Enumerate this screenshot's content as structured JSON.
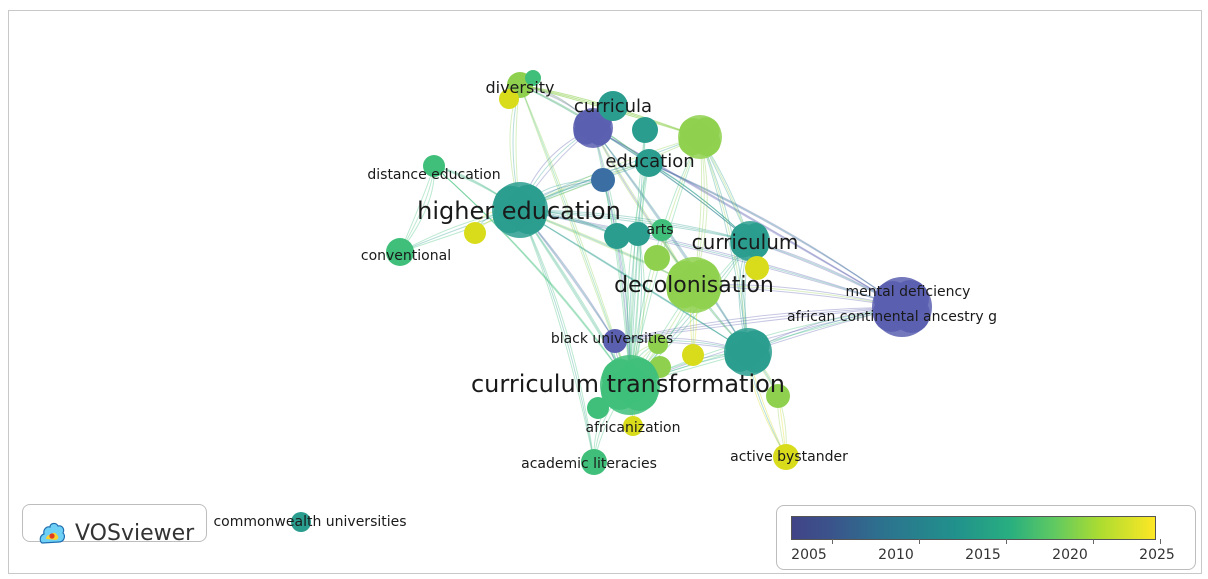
{
  "app": {
    "name": "VOSviewer"
  },
  "labels": {
    "diversity": "diversity",
    "curricula": "curricula",
    "education": "education",
    "distance_education": "distance education",
    "higher_education": "higher education",
    "arts": "arts",
    "curriculum": "curriculum",
    "conventional": "conventional",
    "decolonisation": "decolonisation",
    "mental_deficiency": "mental deficiency",
    "african_ancestry": "african continental ancestry g",
    "black_universities": "black universities",
    "curriculum_transformation": "curriculum transformation",
    "africanization": "africanization",
    "academic_literacies": "academic literacies",
    "active_bystander": "active bystander",
    "commonwealth_universities": "commonwealth universities"
  },
  "legend": {
    "ticks": [
      "2005",
      "2010",
      "2015",
      "2020",
      "2025"
    ],
    "colors": [
      "#414487",
      "#2c728e",
      "#21918c",
      "#5ec962",
      "#fde725"
    ]
  }
}
